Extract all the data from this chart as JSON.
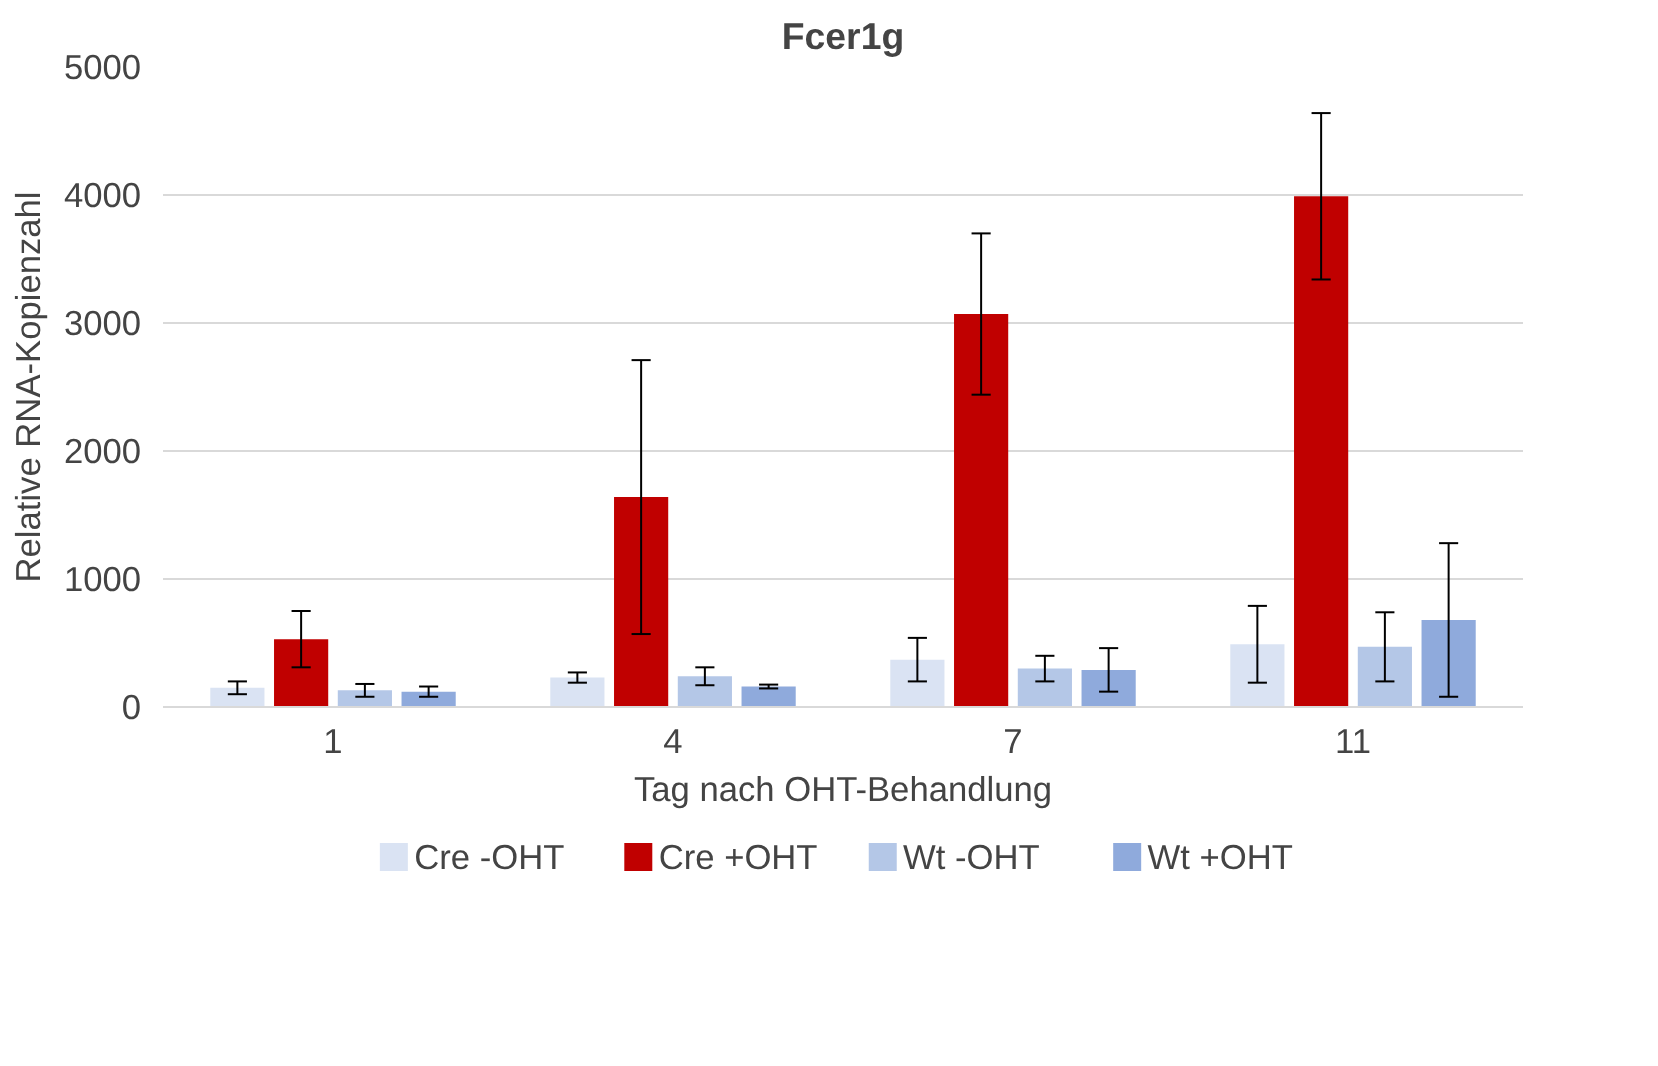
{
  "chart_data": {
    "type": "bar",
    "title": "Fcer1g",
    "xlabel": "Tag nach OHT-Behandlung",
    "ylabel": "Relative RNA-Kopienzahl",
    "categories": [
      "1",
      "4",
      "7",
      "11"
    ],
    "series": [
      {
        "name": "Cre -OHT",
        "color": "#dae3f3",
        "values": [
          150,
          230,
          370,
          490
        ],
        "errors": [
          50,
          40,
          170,
          300
        ]
      },
      {
        "name": "Cre +OHT",
        "color": "#c00000",
        "values": [
          530,
          1640,
          3070,
          3990
        ],
        "errors": [
          220,
          1070,
          630,
          650
        ]
      },
      {
        "name": "Wt -OHT",
        "color": "#b4c7e7",
        "values": [
          130,
          240,
          300,
          470
        ],
        "errors": [
          50,
          70,
          100,
          270
        ]
      },
      {
        "name": "Wt +OHT",
        "color": "#8faadc",
        "values": [
          120,
          160,
          290,
          680
        ],
        "errors": [
          40,
          15,
          170,
          600
        ]
      }
    ],
    "ylim": [
      0,
      5000
    ],
    "yticks": [
      0,
      1000,
      2000,
      3000,
      4000,
      5000
    ],
    "grid": "y",
    "legend": "bottom"
  }
}
